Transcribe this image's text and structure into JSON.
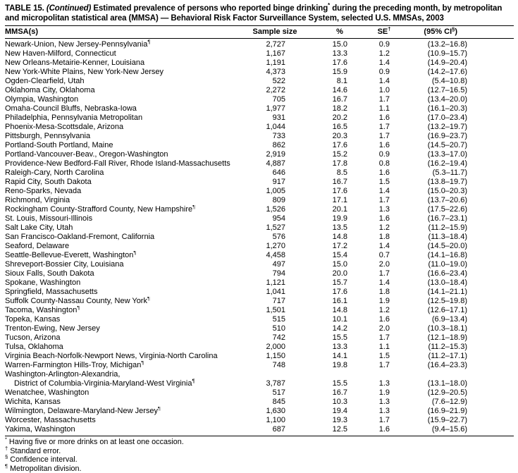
{
  "title": {
    "t1": "TABLE 15. ",
    "continued": "(Continued)",
    "t3": " Estimated prevalence of persons who reported binge drinking",
    "t3_sup": "*",
    "t4": " during the preceding month, by metropolitan and micropolitan statistical area (MMSA) — Behavioral Risk Factor Surveillance System, selected U.S. MMSAs, 2003"
  },
  "header": {
    "mmsa": "MMSA(s)",
    "sample": "Sample size",
    "pct": "%",
    "se": "SE",
    "se_sup": "†",
    "ci": "(95% CI",
    "ci_sup": "§",
    "ci_close": ")"
  },
  "table": {
    "rows": [
      {
        "name": "Newark-Union, New Jersey-Pennsylvania¶",
        "n": "2,727",
        "pct": "15.0",
        "se": "0.9",
        "ci": "(13.2–16.8)"
      },
      {
        "name": "New Haven-Milford, Connecticut",
        "n": "1,167",
        "pct": "13.3",
        "se": "1.2",
        "ci": "(10.9–15.7)"
      },
      {
        "name": "New Orleans-Metairie-Kenner, Louisiana",
        "n": "1,191",
        "pct": "17.6",
        "se": "1.4",
        "ci": "(14.9–20.4)"
      },
      {
        "name": "New York-White Plains, New York-New Jersey",
        "n": "4,373",
        "pct": "15.9",
        "se": "0.9",
        "ci": "(14.2–17.6)"
      },
      {
        "name": "Ogden-Clearfield, Utah",
        "n": "522",
        "pct": "8.1",
        "se": "1.4",
        "ci": "(5.4–10.8)"
      },
      {
        "name": "Oklahoma City, Oklahoma",
        "n": "2,272",
        "pct": "14.6",
        "se": "1.0",
        "ci": "(12.7–16.5)"
      },
      {
        "name": "Olympia, Washington",
        "n": "705",
        "pct": "16.7",
        "se": "1.7",
        "ci": "(13.4–20.0)"
      },
      {
        "name": "Omaha-Council Bluffs, Nebraska-Iowa",
        "n": "1,977",
        "pct": "18.2",
        "se": "1.1",
        "ci": "(16.1–20.3)"
      },
      {
        "name": "Philadelphia, Pennsylvania Metropolitan",
        "n": "931",
        "pct": "20.2",
        "se": "1.6",
        "ci": "(17.0–23.4)"
      },
      {
        "name": "Phoenix-Mesa-Scottsdale, Arizona",
        "n": "1,044",
        "pct": "16.5",
        "se": "1.7",
        "ci": "(13.2–19.7)"
      },
      {
        "name": "Pittsburgh, Pennsylvania",
        "n": "733",
        "pct": "20.3",
        "se": "1.7",
        "ci": "(16.9–23.7)"
      },
      {
        "name": "Portland-South Portland, Maine",
        "n": "862",
        "pct": "17.6",
        "se": "1.6",
        "ci": "(14.5–20.7)"
      },
      {
        "name": "Portland-Vancouver-Beav., Oregon-Washington",
        "n": "2,919",
        "pct": "15.2",
        "se": "0.9",
        "ci": "(13.3–17.0)"
      },
      {
        "name": "Providence-New Bedford-Fall River, Rhode Island-Massachusetts",
        "n": "4,887",
        "pct": "17.8",
        "se": "0.8",
        "ci": "(16.2–19.4)"
      },
      {
        "name": "Raleigh-Cary, North Carolina",
        "n": "646",
        "pct": "8.5",
        "se": "1.6",
        "ci": "(5.3–11.7)"
      },
      {
        "name": "Rapid City, South Dakota",
        "n": "917",
        "pct": "16.7",
        "se": "1.5",
        "ci": "(13.8–19.7)"
      },
      {
        "name": "Reno-Sparks, Nevada",
        "n": "1,005",
        "pct": "17.6",
        "se": "1.4",
        "ci": "(15.0–20.3)"
      },
      {
        "name": "Richmond, Virginia",
        "n": "809",
        "pct": "17.1",
        "se": "1.7",
        "ci": "(13.7–20.6)"
      },
      {
        "name": "Rockingham County-Strafford County, New Hampshire¶",
        "n": "1,526",
        "pct": "20.1",
        "se": "1.3",
        "ci": "(17.5–22.6)"
      },
      {
        "name": "St. Louis, Missouri-Illinois",
        "n": "954",
        "pct": "19.9",
        "se": "1.6",
        "ci": "(16.7–23.1)"
      },
      {
        "name": "Salt Lake City, Utah",
        "n": "1,527",
        "pct": "13.5",
        "se": "1.2",
        "ci": "(11.2–15.9)"
      },
      {
        "name": "San Francisco-Oakland-Fremont, California",
        "n": "576",
        "pct": "14.8",
        "se": "1.8",
        "ci": "(11.3–18.4)"
      },
      {
        "name": "Seaford, Delaware",
        "n": "1,270",
        "pct": "17.2",
        "se": "1.4",
        "ci": "(14.5–20.0)"
      },
      {
        "name": "Seattle-Bellevue-Everett, Washington¶",
        "n": "4,458",
        "pct": "15.4",
        "se": "0.7",
        "ci": "(14.1–16.8)"
      },
      {
        "name": "Shreveport-Bossier City, Louisiana",
        "n": "497",
        "pct": "15.0",
        "se": "2.0",
        "ci": "(11.0–19.0)"
      },
      {
        "name": "Sioux Falls, South Dakota",
        "n": "794",
        "pct": "20.0",
        "se": "1.7",
        "ci": "(16.6–23.4)"
      },
      {
        "name": "Spokane, Washington",
        "n": "1,121",
        "pct": "15.7",
        "se": "1.4",
        "ci": "(13.0–18.4)"
      },
      {
        "name": "Springfield, Massachusetts",
        "n": "1,041",
        "pct": "17.6",
        "se": "1.8",
        "ci": "(14.1–21.1)"
      },
      {
        "name": "Suffolk County-Nassau County, New York¶",
        "n": "717",
        "pct": "16.1",
        "se": "1.9",
        "ci": "(12.5–19.8)"
      },
      {
        "name": "Tacoma, Washington¶",
        "n": "1,501",
        "pct": "14.8",
        "se": "1.2",
        "ci": "(12.6–17.1)"
      },
      {
        "name": "Topeka, Kansas",
        "n": "515",
        "pct": "10.1",
        "se": "1.6",
        "ci": "(6.9–13.4)"
      },
      {
        "name": "Trenton-Ewing, New Jersey",
        "n": "510",
        "pct": "14.2",
        "se": "2.0",
        "ci": "(10.3–18.1)"
      },
      {
        "name": "Tucson, Arizona",
        "n": "742",
        "pct": "15.5",
        "se": "1.7",
        "ci": "(12.1–18.9)"
      },
      {
        "name": "Tulsa, Oklahoma",
        "n": "2,000",
        "pct": "13.3",
        "se": "1.1",
        "ci": "(11.2–15.3)"
      },
      {
        "name": "Virginia Beach-Norfolk-Newport News, Virginia-North Carolina",
        "n": "1,150",
        "pct": "14.1",
        "se": "1.5",
        "ci": "(11.2–17.1)"
      },
      {
        "name": "Warren-Farmington Hills-Troy, Michigan¶",
        "n": "748",
        "pct": "19.8",
        "se": "1.7",
        "ci": "(16.4–23.3)"
      },
      {
        "name": "Washington-Arlington-Alexandria,",
        "name2": "District of Columbia-Virginia-Maryland-West Virginia¶",
        "n": "3,787",
        "pct": "15.5",
        "se": "1.3",
        "ci": "(13.1–18.0)"
      },
      {
        "name": "Wenatchee, Washington",
        "n": "517",
        "pct": "16.7",
        "se": "1.9",
        "ci": "(12.9–20.5)"
      },
      {
        "name": "Wichita, Kansas",
        "n": "845",
        "pct": "10.3",
        "se": "1.3",
        "ci": "(7.6–12.9)"
      },
      {
        "name": "Wilmington, Delaware-Maryland-New Jersey¶",
        "n": "1,630",
        "pct": "19.4",
        "se": "1.3",
        "ci": "(16.9–21.9)"
      },
      {
        "name": "Worcester, Massachusetts",
        "n": "1,100",
        "pct": "19.3",
        "se": "1.7",
        "ci": "(15.9–22.7)"
      },
      {
        "name": "Yakima, Washington",
        "n": "687",
        "pct": "12.5",
        "se": "1.6",
        "ci": "(9.4–15.6)"
      }
    ]
  },
  "footnotes": [
    {
      "marker": "*",
      "text": "Having five or more drinks on at least one occasion."
    },
    {
      "marker": "†",
      "text": "Standard error."
    },
    {
      "marker": "§",
      "text": "Confidence interval."
    },
    {
      "marker": "¶",
      "text": "Metropolitan division."
    }
  ]
}
